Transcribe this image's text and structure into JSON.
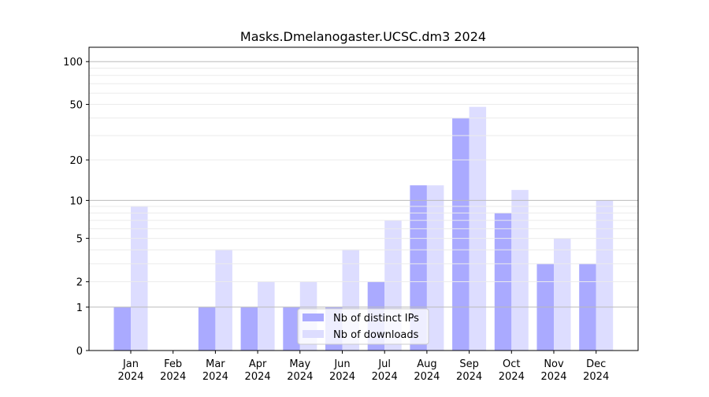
{
  "chart_data": {
    "type": "bar",
    "title": "Masks.Dmelanogaster.UCSC.dm3 2024",
    "xlabel": "",
    "ylabel": "",
    "y_scale": "log(1+y)",
    "ylim": [
      0,
      120
    ],
    "grid": true,
    "legend_position": "bottom-center",
    "categories": [
      "Jan\n2024",
      "Feb\n2024",
      "Mar\n2024",
      "Apr\n2024",
      "May\n2024",
      "Jun\n2024",
      "Jul\n2024",
      "Aug\n2024",
      "Sep\n2024",
      "Oct\n2024",
      "Nov\n2024",
      "Dec\n2024"
    ],
    "category_labels": [
      {
        "month": "Jan",
        "year": "2024"
      },
      {
        "month": "Feb",
        "year": "2024"
      },
      {
        "month": "Mar",
        "year": "2024"
      },
      {
        "month": "Apr",
        "year": "2024"
      },
      {
        "month": "May",
        "year": "2024"
      },
      {
        "month": "Jun",
        "year": "2024"
      },
      {
        "month": "Jul",
        "year": "2024"
      },
      {
        "month": "Aug",
        "year": "2024"
      },
      {
        "month": "Sep",
        "year": "2024"
      },
      {
        "month": "Oct",
        "year": "2024"
      },
      {
        "month": "Nov",
        "year": "2024"
      },
      {
        "month": "Dec",
        "year": "2024"
      }
    ],
    "yticks": [
      0,
      1,
      2,
      5,
      10,
      20,
      50,
      100
    ],
    "ytick_labels": [
      "0",
      "1",
      "2",
      "5",
      "10",
      "20",
      "50",
      "100"
    ],
    "series": [
      {
        "name": "Nb of distinct IPs",
        "color": "#aaaaff",
        "values": [
          1,
          0,
          1,
          1,
          1,
          1,
          2,
          13,
          40,
          8,
          3,
          3
        ]
      },
      {
        "name": "Nb of downloads",
        "color": "#ddddff",
        "values": [
          9,
          0,
          4,
          2,
          2,
          4,
          7,
          13,
          48,
          12,
          5,
          10
        ]
      }
    ]
  }
}
